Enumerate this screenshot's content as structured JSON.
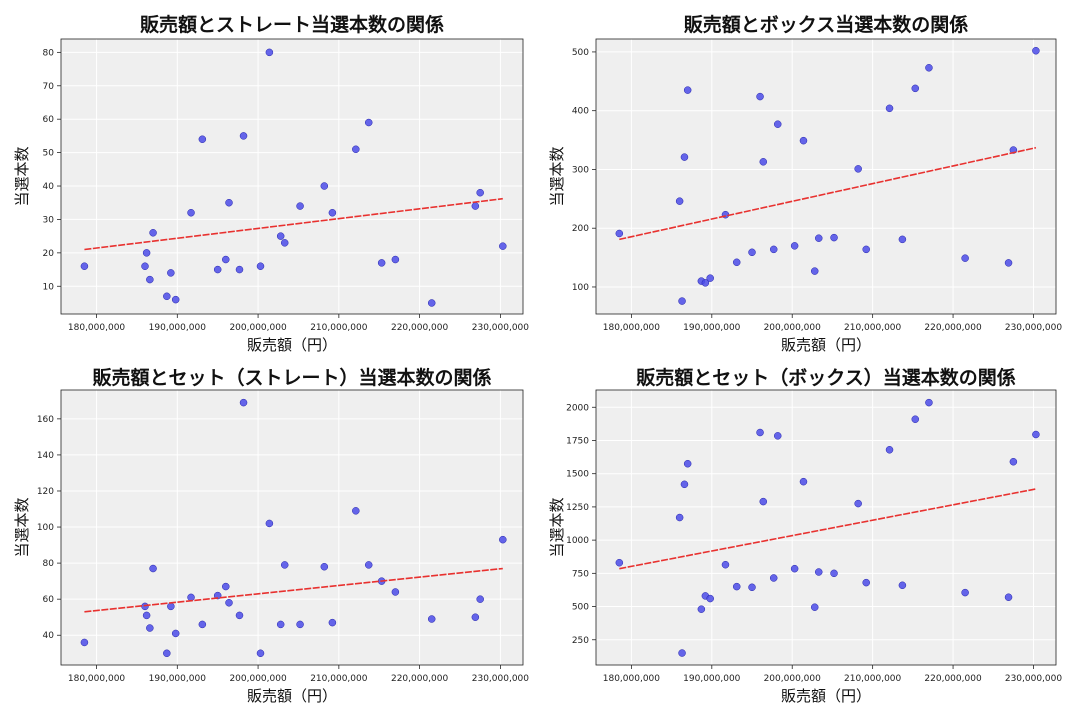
{
  "figure": {
    "background": "#ffffff",
    "plot_background": "#efefef",
    "grid_color": "#ffffff",
    "point_color": "#4b4be8",
    "trend_color": "#e8312f"
  },
  "chart_data": [
    {
      "type": "scatter",
      "title": "販売額とストレート当選本数の関係",
      "xlabel": "販売額（円）",
      "ylabel": "当選本数",
      "xlim": [
        175600000,
        232800000
      ],
      "ylim": [
        1.7,
        84
      ],
      "xticks": [
        180000000,
        190000000,
        200000000,
        210000000,
        220000000,
        230000000
      ],
      "xtick_labels": [
        "180,000,000",
        "190,000,000",
        "200,000,000",
        "210,000,000",
        "220,000,000",
        "230,000,000"
      ],
      "yticks": [
        10,
        20,
        30,
        40,
        50,
        60,
        70,
        80
      ],
      "ytick_labels": [
        "10",
        "20",
        "30",
        "40",
        "50",
        "60",
        "70",
        "80"
      ],
      "grid": true,
      "points": [
        {
          "x": 178500000,
          "y": 16
        },
        {
          "x": 186000000,
          "y": 16
        },
        {
          "x": 186200000,
          "y": 20
        },
        {
          "x": 186600000,
          "y": 12
        },
        {
          "x": 187000000,
          "y": 26
        },
        {
          "x": 188700000,
          "y": 7
        },
        {
          "x": 189200000,
          "y": 14
        },
        {
          "x": 189800000,
          "y": 6
        },
        {
          "x": 191700000,
          "y": 32
        },
        {
          "x": 193100000,
          "y": 54
        },
        {
          "x": 195000000,
          "y": 15
        },
        {
          "x": 196000000,
          "y": 18
        },
        {
          "x": 196400000,
          "y": 35
        },
        {
          "x": 197700000,
          "y": 15
        },
        {
          "x": 198200000,
          "y": 55
        },
        {
          "x": 200300000,
          "y": 16
        },
        {
          "x": 201400000,
          "y": 80
        },
        {
          "x": 202800000,
          "y": 25
        },
        {
          "x": 203300000,
          "y": 23
        },
        {
          "x": 205200000,
          "y": 34
        },
        {
          "x": 208200000,
          "y": 40
        },
        {
          "x": 209200000,
          "y": 32
        },
        {
          "x": 212100000,
          "y": 51
        },
        {
          "x": 213700000,
          "y": 59
        },
        {
          "x": 215300000,
          "y": 17
        },
        {
          "x": 217000000,
          "y": 18
        },
        {
          "x": 221500000,
          "y": 5
        },
        {
          "x": 226900000,
          "y": 34
        },
        {
          "x": 227500000,
          "y": 38
        },
        {
          "x": 230300000,
          "y": 22
        }
      ],
      "trend_line": {
        "x": [
          178500000,
          230300000
        ],
        "y": [
          21.0,
          36.2
        ]
      }
    },
    {
      "type": "scatter",
      "title": "販売額とボックス当選本数の関係",
      "xlabel": "販売額（円）",
      "ylabel": "当選本数",
      "xlim": [
        175600000,
        232800000
      ],
      "ylim": [
        54,
        522
      ],
      "xticks": [
        180000000,
        190000000,
        200000000,
        210000000,
        220000000,
        230000000
      ],
      "xtick_labels": [
        "180,000,000",
        "190,000,000",
        "200,000,000",
        "210,000,000",
        "220,000,000",
        "230,000,000"
      ],
      "yticks": [
        100,
        200,
        300,
        400,
        500
      ],
      "ytick_labels": [
        "100",
        "200",
        "300",
        "400",
        "500"
      ],
      "grid": true,
      "points": [
        {
          "x": 178500000,
          "y": 191
        },
        {
          "x": 186000000,
          "y": 246
        },
        {
          "x": 186300000,
          "y": 76
        },
        {
          "x": 186600000,
          "y": 321
        },
        {
          "x": 187000000,
          "y": 435
        },
        {
          "x": 188700000,
          "y": 110
        },
        {
          "x": 189200000,
          "y": 107
        },
        {
          "x": 189800000,
          "y": 115
        },
        {
          "x": 191700000,
          "y": 223
        },
        {
          "x": 193100000,
          "y": 142
        },
        {
          "x": 195000000,
          "y": 159
        },
        {
          "x": 196000000,
          "y": 424
        },
        {
          "x": 196400000,
          "y": 313
        },
        {
          "x": 197700000,
          "y": 164
        },
        {
          "x": 198200000,
          "y": 377
        },
        {
          "x": 200300000,
          "y": 170
        },
        {
          "x": 201400000,
          "y": 349
        },
        {
          "x": 202800000,
          "y": 127
        },
        {
          "x": 203300000,
          "y": 183
        },
        {
          "x": 205200000,
          "y": 184
        },
        {
          "x": 208200000,
          "y": 301
        },
        {
          "x": 209200000,
          "y": 164
        },
        {
          "x": 212100000,
          "y": 404
        },
        {
          "x": 213700000,
          "y": 181
        },
        {
          "x": 215300000,
          "y": 438
        },
        {
          "x": 217000000,
          "y": 473
        },
        {
          "x": 221500000,
          "y": 149
        },
        {
          "x": 226900000,
          "y": 141
        },
        {
          "x": 227500000,
          "y": 333
        },
        {
          "x": 230300000,
          "y": 502
        }
      ],
      "trend_line": {
        "x": [
          178500000,
          230300000
        ],
        "y": [
          181,
          337
        ]
      }
    },
    {
      "type": "scatter",
      "title": "販売額とセット（ストレート）当選本数の関係",
      "xlabel": "販売額（円）",
      "ylabel": "当選本数",
      "xlim": [
        175600000,
        232800000
      ],
      "ylim": [
        23.5,
        176
      ],
      "xticks": [
        180000000,
        190000000,
        200000000,
        210000000,
        220000000,
        230000000
      ],
      "xtick_labels": [
        "180,000,000",
        "190,000,000",
        "200,000,000",
        "210,000,000",
        "220,000,000",
        "230,000,000"
      ],
      "yticks": [
        40,
        60,
        80,
        100,
        120,
        140,
        160
      ],
      "ytick_labels": [
        "40",
        "60",
        "80",
        "100",
        "120",
        "140",
        "160"
      ],
      "grid": true,
      "points": [
        {
          "x": 178500000,
          "y": 36
        },
        {
          "x": 186000000,
          "y": 56
        },
        {
          "x": 186200000,
          "y": 51
        },
        {
          "x": 186600000,
          "y": 44
        },
        {
          "x": 187000000,
          "y": 77
        },
        {
          "x": 188700000,
          "y": 30
        },
        {
          "x": 189200000,
          "y": 56
        },
        {
          "x": 189800000,
          "y": 41
        },
        {
          "x": 191700000,
          "y": 61
        },
        {
          "x": 193100000,
          "y": 46
        },
        {
          "x": 195000000,
          "y": 62
        },
        {
          "x": 196000000,
          "y": 67
        },
        {
          "x": 196400000,
          "y": 58
        },
        {
          "x": 197700000,
          "y": 51
        },
        {
          "x": 198200000,
          "y": 169
        },
        {
          "x": 200300000,
          "y": 30
        },
        {
          "x": 201400000,
          "y": 102
        },
        {
          "x": 202800000,
          "y": 46
        },
        {
          "x": 203300000,
          "y": 79
        },
        {
          "x": 205200000,
          "y": 46
        },
        {
          "x": 208200000,
          "y": 78
        },
        {
          "x": 209200000,
          "y": 47
        },
        {
          "x": 212100000,
          "y": 109
        },
        {
          "x": 213700000,
          "y": 79
        },
        {
          "x": 215300000,
          "y": 70
        },
        {
          "x": 217000000,
          "y": 64
        },
        {
          "x": 221500000,
          "y": 49
        },
        {
          "x": 226900000,
          "y": 50
        },
        {
          "x": 227500000,
          "y": 60
        },
        {
          "x": 230300000,
          "y": 93
        }
      ],
      "trend_line": {
        "x": [
          178500000,
          230300000
        ],
        "y": [
          53,
          77
        ]
      }
    },
    {
      "type": "scatter",
      "title": "販売額とセット（ボックス）当選本数の関係",
      "xlabel": "販売額（円）",
      "ylabel": "当選本数",
      "xlim": [
        175600000,
        232800000
      ],
      "ylim": [
        60,
        2130
      ],
      "xticks": [
        180000000,
        190000000,
        200000000,
        210000000,
        220000000,
        230000000
      ],
      "xtick_labels": [
        "180,000,000",
        "190,000,000",
        "200,000,000",
        "210,000,000",
        "220,000,000",
        "230,000,000"
      ],
      "yticks": [
        250,
        500,
        750,
        1000,
        1250,
        1500,
        1750,
        2000
      ],
      "ytick_labels": [
        "250",
        "500",
        "750",
        "1000",
        "1250",
        "1500",
        "1750",
        "2000"
      ],
      "grid": true,
      "points": [
        {
          "x": 178500000,
          "y": 830
        },
        {
          "x": 186000000,
          "y": 1170
        },
        {
          "x": 186300000,
          "y": 150
        },
        {
          "x": 186600000,
          "y": 1420
        },
        {
          "x": 187000000,
          "y": 1575
        },
        {
          "x": 188700000,
          "y": 480
        },
        {
          "x": 189200000,
          "y": 580
        },
        {
          "x": 189800000,
          "y": 560
        },
        {
          "x": 191700000,
          "y": 815
        },
        {
          "x": 193100000,
          "y": 650
        },
        {
          "x": 195000000,
          "y": 645
        },
        {
          "x": 196000000,
          "y": 1810
        },
        {
          "x": 196400000,
          "y": 1290
        },
        {
          "x": 197700000,
          "y": 715
        },
        {
          "x": 198200000,
          "y": 1785
        },
        {
          "x": 200300000,
          "y": 785
        },
        {
          "x": 201400000,
          "y": 1440
        },
        {
          "x": 202800000,
          "y": 495
        },
        {
          "x": 203300000,
          "y": 760
        },
        {
          "x": 205200000,
          "y": 750
        },
        {
          "x": 208200000,
          "y": 1275
        },
        {
          "x": 209200000,
          "y": 680
        },
        {
          "x": 212100000,
          "y": 1680
        },
        {
          "x": 213700000,
          "y": 660
        },
        {
          "x": 215300000,
          "y": 1910
        },
        {
          "x": 217000000,
          "y": 2035
        },
        {
          "x": 221500000,
          "y": 605
        },
        {
          "x": 226900000,
          "y": 570
        },
        {
          "x": 227500000,
          "y": 1590
        },
        {
          "x": 230300000,
          "y": 1795
        }
      ],
      "trend_line": {
        "x": [
          178500000,
          230300000
        ],
        "y": [
          785,
          1385
        ]
      }
    }
  ]
}
